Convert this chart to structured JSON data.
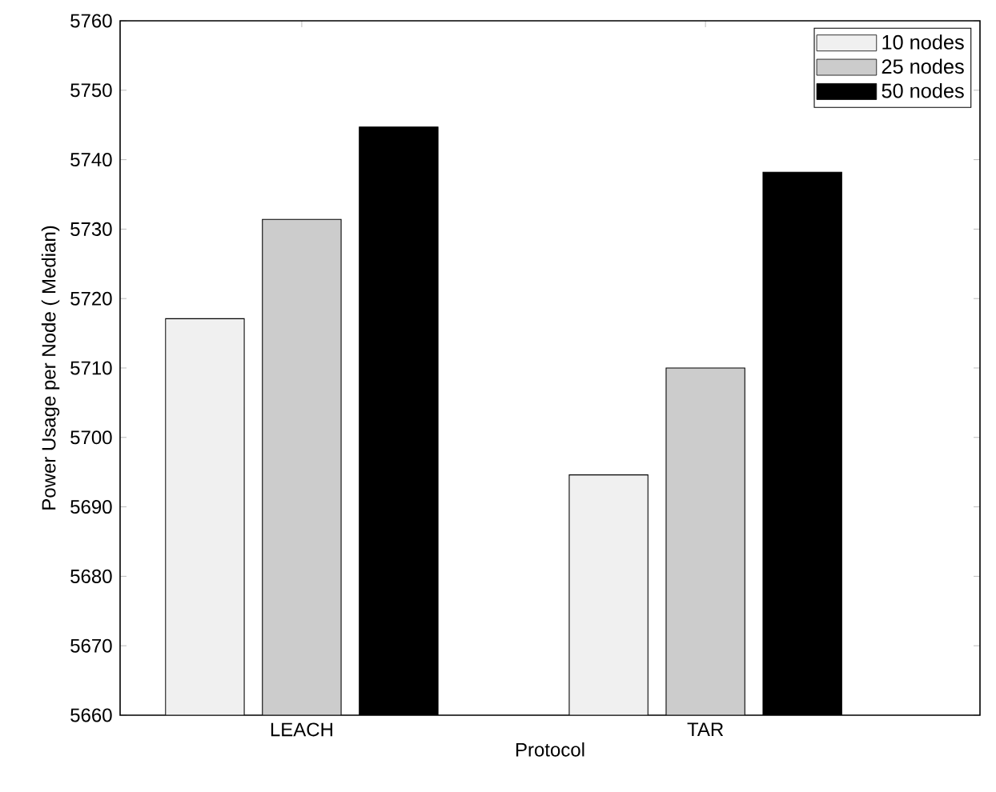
{
  "chart_data": {
    "type": "bar",
    "xlabel": "Protocol",
    "ylabel": "Power Usage per Node ( Median)",
    "categories": [
      "LEACH",
      "TAR"
    ],
    "series": [
      {
        "name": "10 nodes",
        "color": "#f0f0f0",
        "values": [
          5717.1,
          5694.6
        ]
      },
      {
        "name": "25 nodes",
        "color": "#cccccc",
        "values": [
          5731.4,
          5710.0
        ]
      },
      {
        "name": "50 nodes",
        "color": "#000000",
        "values": [
          5744.7,
          5738.2
        ]
      }
    ],
    "ylim": [
      5660,
      5760
    ],
    "yticks": [
      5660,
      5670,
      5680,
      5690,
      5700,
      5710,
      5720,
      5730,
      5740,
      5750,
      5760
    ],
    "legend": "top right"
  }
}
